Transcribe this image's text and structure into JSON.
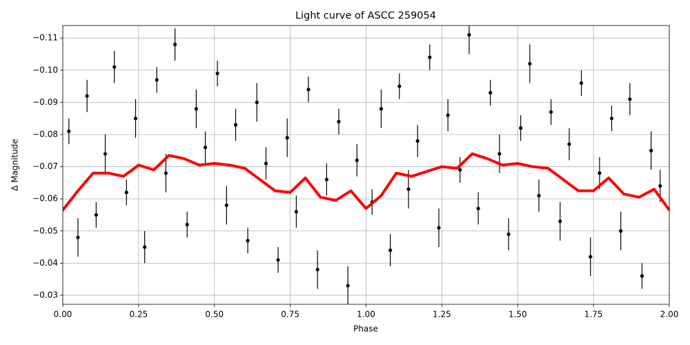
{
  "chart_data": {
    "type": "scatter",
    "title": "Light curve of ASCC 259054",
    "x_label": "Phase",
    "y_label": "Δ Magnitude",
    "xlim": [
      0,
      2
    ],
    "ylim": [
      -0.0272,
      -0.1139
    ],
    "grid": true,
    "xticks": [
      {
        "value": 0,
        "label": "0.00"
      },
      {
        "value": 0.25,
        "label": "0.25"
      },
      {
        "value": 0.5,
        "label": "0.50"
      },
      {
        "value": 0.75,
        "label": "0.75"
      },
      {
        "value": 1,
        "label": "1.00"
      },
      {
        "value": 1.25,
        "label": "1.25"
      },
      {
        "value": 1.5,
        "label": "1.50"
      },
      {
        "value": 1.75,
        "label": "1.75"
      },
      {
        "value": 2,
        "label": "2.00"
      }
    ],
    "yticks": [
      {
        "value": -0.11,
        "label": "−0.11"
      },
      {
        "value": -0.1,
        "label": "−0.10"
      },
      {
        "value": -0.09,
        "label": "−0.09"
      },
      {
        "value": -0.08,
        "label": "−0.08"
      },
      {
        "value": -0.07,
        "label": "−0.07"
      },
      {
        "value": -0.06,
        "label": "−0.06"
      },
      {
        "value": -0.05,
        "label": "−0.05"
      },
      {
        "value": -0.04,
        "label": "−0.04"
      },
      {
        "value": -0.03,
        "label": "−0.03"
      }
    ],
    "series": [
      {
        "type": "errorbar",
        "color": "#000000",
        "x": [
          0.02,
          0.05,
          0.08,
          0.11,
          0.14,
          0.17,
          0.21,
          0.24,
          0.27,
          0.31,
          0.34,
          0.37,
          0.41,
          0.44,
          0.47,
          0.51,
          0.54,
          0.57,
          0.61,
          0.64,
          0.67,
          0.71,
          0.74,
          0.77,
          0.81,
          0.84,
          0.87,
          0.91,
          0.94,
          0.97,
          1.02,
          1.05,
          1.08,
          1.11,
          1.14,
          1.17,
          1.21,
          1.24,
          1.27,
          1.31,
          1.34,
          1.37,
          1.41,
          1.44,
          1.47,
          1.51,
          1.54,
          1.57,
          1.61,
          1.64,
          1.67,
          1.71,
          1.74,
          1.77,
          1.81,
          1.84,
          1.87,
          1.91,
          1.94,
          1.97
        ],
        "values": [
          -0.081,
          -0.048,
          -0.092,
          -0.055,
          -0.074,
          -0.101,
          -0.062,
          -0.085,
          -0.045,
          -0.097,
          -0.068,
          -0.108,
          -0.052,
          -0.088,
          -0.076,
          -0.099,
          -0.058,
          -0.083,
          -0.047,
          -0.09,
          -0.071,
          -0.041,
          -0.079,
          -0.056,
          -0.094,
          -0.038,
          -0.066,
          -0.084,
          -0.033,
          -0.072,
          -0.059,
          -0.088,
          -0.044,
          -0.095,
          -0.063,
          -0.078,
          -0.104,
          -0.051,
          -0.086,
          -0.069,
          -0.111,
          -0.057,
          -0.093,
          -0.074,
          -0.049,
          -0.082,
          -0.102,
          -0.061,
          -0.087,
          -0.053,
          -0.077,
          -0.096,
          -0.042,
          -0.068,
          -0.085,
          -0.05,
          -0.091,
          -0.036,
          -0.075,
          -0.064
        ],
        "errors": [
          0.004,
          0.006,
          0.005,
          0.004,
          0.006,
          0.005,
          0.004,
          0.006,
          0.005,
          0.004,
          0.006,
          0.005,
          0.004,
          0.006,
          0.005,
          0.004,
          0.006,
          0.005,
          0.004,
          0.006,
          0.005,
          0.004,
          0.006,
          0.005,
          0.004,
          0.006,
          0.005,
          0.004,
          0.006,
          0.005,
          0.004,
          0.006,
          0.005,
          0.004,
          0.006,
          0.005,
          0.004,
          0.006,
          0.005,
          0.004,
          0.006,
          0.005,
          0.004,
          0.006,
          0.005,
          0.004,
          0.006,
          0.005,
          0.004,
          0.006,
          0.005,
          0.004,
          0.006,
          0.005,
          0.004,
          0.006,
          0.005,
          0.004,
          0.006,
          0.005
        ]
      },
      {
        "type": "line",
        "color": "#ff0000",
        "x": [
          0,
          0.05,
          0.1,
          0.15,
          0.2,
          0.25,
          0.3,
          0.35,
          0.4,
          0.45,
          0.5,
          0.55,
          0.6,
          0.65,
          0.7,
          0.75,
          0.8,
          0.85,
          0.9,
          0.95,
          1,
          1.05,
          1.1,
          1.15,
          1.2,
          1.25,
          1.3,
          1.35,
          1.4,
          1.45,
          1.5,
          1.55,
          1.6,
          1.65,
          1.7,
          1.75,
          1.8,
          1.85,
          1.9,
          1.95,
          2
        ],
        "values": [
          -0.0565,
          -0.0625,
          -0.068,
          -0.068,
          -0.067,
          -0.0705,
          -0.069,
          -0.0735,
          -0.0725,
          -0.0705,
          -0.071,
          -0.0705,
          -0.0695,
          -0.066,
          -0.0625,
          -0.062,
          -0.0665,
          -0.0605,
          -0.0595,
          -0.0625,
          -0.057,
          -0.061,
          -0.068,
          -0.067,
          -0.0685,
          -0.07,
          -0.0695,
          -0.074,
          -0.0725,
          -0.0705,
          -0.071,
          -0.07,
          -0.0695,
          -0.066,
          -0.0625,
          -0.0625,
          -0.0665,
          -0.0615,
          -0.0605,
          -0.063,
          -0.0565
        ]
      }
    ]
  }
}
